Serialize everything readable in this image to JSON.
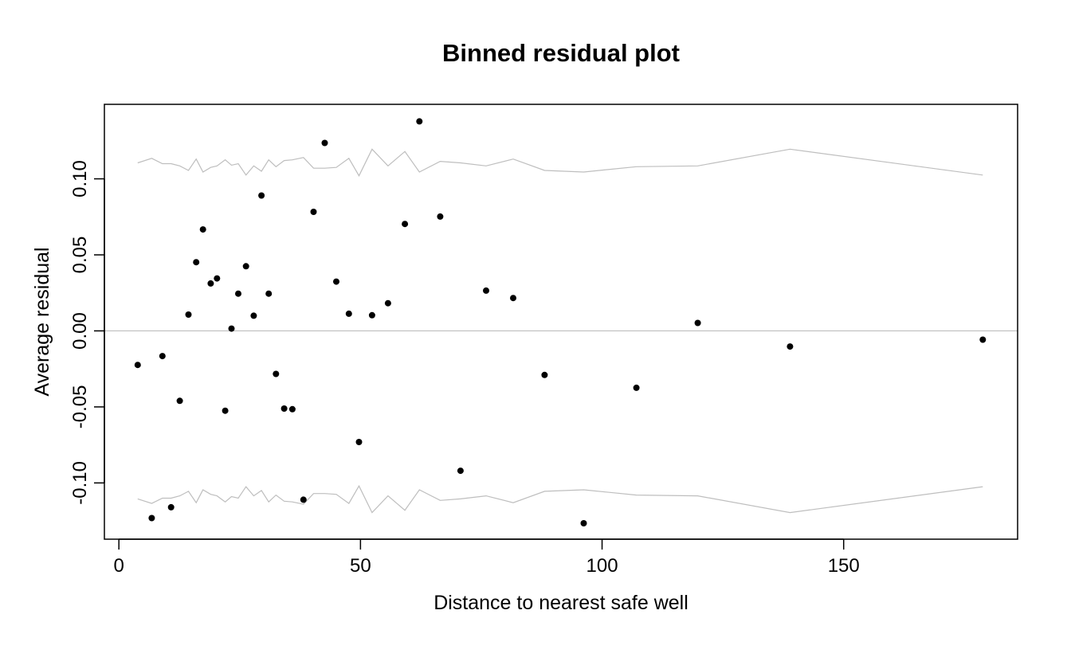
{
  "chart_data": {
    "type": "scatter",
    "title": "Binned residual plot",
    "xlabel": "Distance to nearest safe well",
    "ylabel": "Average residual",
    "xlim": [
      -3,
      186
    ],
    "ylim": [
      -0.137,
      0.149
    ],
    "x_ticks": [
      0,
      50,
      100,
      150
    ],
    "x_tick_labels": [
      "0",
      "50",
      "100",
      "150"
    ],
    "y_ticks": [
      -0.1,
      -0.05,
      0.0,
      0.05,
      0.1
    ],
    "y_tick_labels": [
      "-0.10",
      "-0.05",
      "0.00",
      "0.05",
      "0.10"
    ],
    "reference_line_y": 0,
    "grid": false,
    "colors": {
      "points": "#000000",
      "bounds": "#bebebe",
      "zero_line": "#bebebe",
      "frame": "#000000"
    },
    "points": {
      "x": [
        3.9,
        6.8,
        9.0,
        10.8,
        12.6,
        14.4,
        16.0,
        17.4,
        19.0,
        20.3,
        22.0,
        23.3,
        24.7,
        26.3,
        27.9,
        29.5,
        31.0,
        32.5,
        34.2,
        35.9,
        38.2,
        40.3,
        42.6,
        45.0,
        47.6,
        49.7,
        52.4,
        55.7,
        59.2,
        62.2,
        66.5,
        70.7,
        76.0,
        81.6,
        88.1,
        96.2,
        107.1,
        119.8,
        138.9,
        178.8
      ],
      "y": [
        -0.0224,
        -0.1231,
        -0.0166,
        -0.116,
        -0.046,
        0.0107,
        0.0452,
        0.0667,
        0.0312,
        0.0345,
        -0.0525,
        0.0015,
        0.0245,
        0.0425,
        0.01,
        0.089,
        0.0245,
        -0.0283,
        -0.0511,
        -0.0515,
        -0.111,
        0.0783,
        0.1236,
        0.0324,
        0.0113,
        -0.0731,
        0.0103,
        0.0182,
        0.0703,
        0.1378,
        0.0752,
        -0.092,
        0.0265,
        0.0216,
        -0.029,
        -0.1265,
        -0.0374,
        0.0052,
        -0.0103,
        -0.0058
      ]
    },
    "bounds": {
      "x": [
        3.9,
        6.8,
        9.0,
        10.8,
        12.6,
        14.4,
        16.0,
        17.4,
        19.0,
        20.3,
        22.0,
        23.3,
        24.7,
        26.3,
        27.9,
        29.5,
        31.0,
        32.5,
        34.2,
        35.9,
        38.2,
        40.3,
        42.6,
        45.0,
        47.6,
        49.7,
        52.4,
        55.7,
        59.2,
        62.2,
        66.5,
        70.7,
        76.0,
        81.6,
        88.1,
        96.2,
        107.1,
        119.8,
        138.9,
        178.8
      ],
      "upper": [
        0.1105,
        0.1135,
        0.11,
        0.11,
        0.1085,
        0.1055,
        0.113,
        0.1045,
        0.1075,
        0.1085,
        0.1125,
        0.109,
        0.11,
        0.1025,
        0.1085,
        0.105,
        0.1125,
        0.108,
        0.112,
        0.1125,
        0.114,
        0.107,
        0.107,
        0.1075,
        0.1135,
        0.102,
        0.1195,
        0.1085,
        0.118,
        0.1045,
        0.1115,
        0.1105,
        0.1085,
        0.113,
        0.1055,
        0.1045,
        0.108,
        0.1085,
        0.1195,
        0.1025
      ]
    }
  }
}
